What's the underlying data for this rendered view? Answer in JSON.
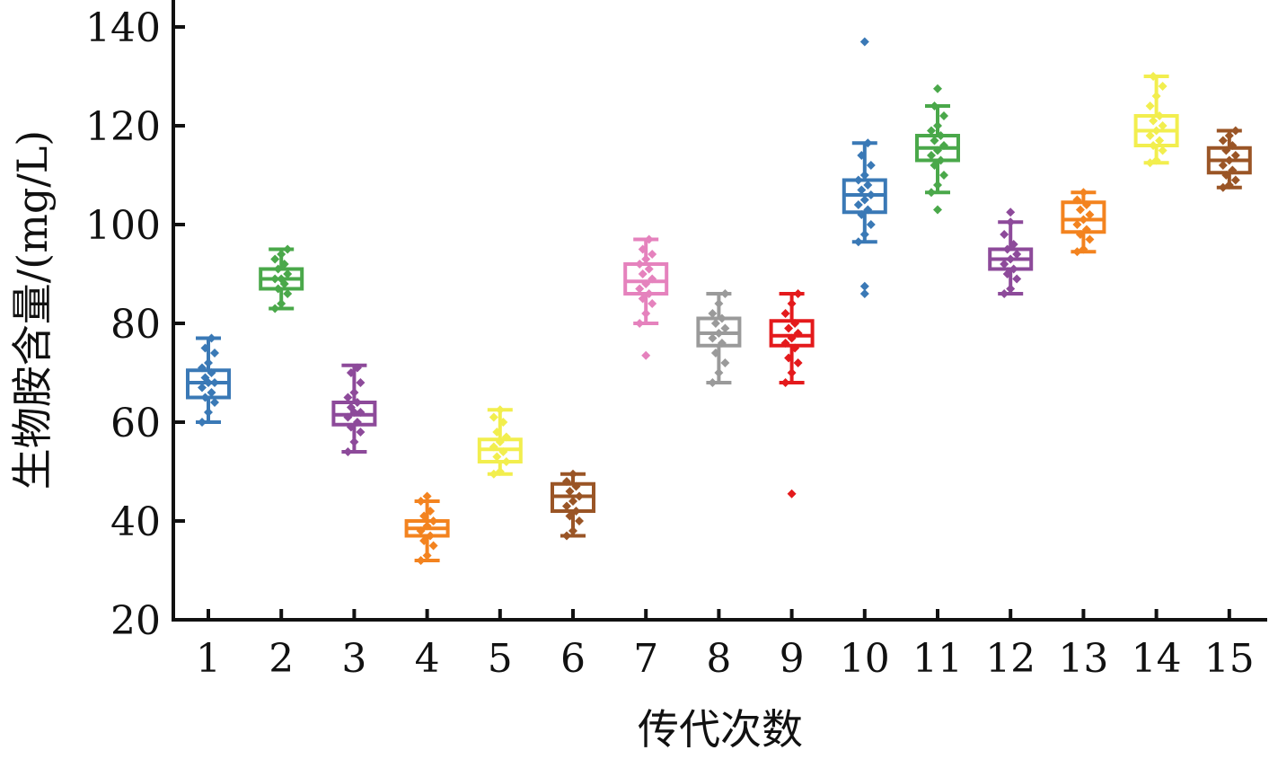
{
  "chart_data": {
    "type": "box",
    "xlabel": "传代次数",
    "ylabel": "生物胺含量/(mg/L)",
    "ylim": [
      20,
      140
    ],
    "yticks": [
      20,
      40,
      60,
      80,
      100,
      120,
      140
    ],
    "grid": false,
    "legend": "none",
    "categories": [
      "1",
      "2",
      "3",
      "4",
      "5",
      "6",
      "7",
      "8",
      "9",
      "10",
      "11",
      "12",
      "13",
      "14",
      "15"
    ],
    "boxes": [
      {
        "category": "1",
        "color": "#3a79b6",
        "whisker_low": 60,
        "q1": 65,
        "median": 68,
        "q3": 70.5,
        "whisker_high": 77,
        "outliers": [],
        "points": [
          60,
          62,
          64,
          65,
          66,
          67,
          68,
          68,
          69,
          70,
          71,
          72,
          74,
          75,
          77
        ]
      },
      {
        "category": "2",
        "color": "#4aa84a",
        "whisker_low": 83,
        "q1": 87,
        "median": 89,
        "q3": 91,
        "whisker_high": 95,
        "outliers": [],
        "points": [
          83,
          84,
          86,
          87,
          88,
          89,
          89,
          90,
          91,
          92,
          93,
          94,
          95
        ]
      },
      {
        "category": "3",
        "color": "#8d4a9a",
        "whisker_low": 54,
        "q1": 59.5,
        "median": 61.5,
        "q3": 64,
        "whisker_high": 71.5,
        "outliers": [],
        "points": [
          54,
          56,
          58,
          59,
          60,
          61,
          62,
          62,
          63,
          64,
          65,
          66,
          68,
          70,
          71
        ]
      },
      {
        "category": "4",
        "color": "#f3831f",
        "whisker_low": 32,
        "q1": 37,
        "median": 38.5,
        "q3": 40,
        "whisker_high": 44,
        "outliers": [],
        "points": [
          32,
          33,
          35,
          36,
          37,
          38,
          39,
          40,
          41,
          42,
          44,
          45
        ]
      },
      {
        "category": "5",
        "color": "#f2ee4e",
        "whisker_low": 49.5,
        "q1": 52,
        "median": 54.5,
        "q3": 56.5,
        "whisker_high": 62.5,
        "outliers": [],
        "points": [
          49.5,
          50,
          52,
          53,
          54,
          55,
          56,
          57,
          58,
          60,
          61,
          62.5
        ]
      },
      {
        "category": "6",
        "color": "#9a5526",
        "whisker_low": 37,
        "q1": 42,
        "median": 45,
        "q3": 47.5,
        "whisker_high": 49.5,
        "outliers": [],
        "points": [
          37,
          38,
          40,
          41,
          42,
          43,
          44,
          45,
          46,
          47,
          48,
          49.5
        ]
      },
      {
        "category": "7",
        "color": "#e582bd",
        "whisker_low": 80,
        "q1": 86,
        "median": 88.5,
        "q3": 92,
        "whisker_high": 97,
        "outliers": [
          73.5
        ],
        "points": [
          80,
          82,
          84,
          85,
          86,
          87,
          88,
          89,
          90,
          91,
          92,
          93,
          94,
          95,
          97
        ]
      },
      {
        "category": "8",
        "color": "#9a9a9a",
        "whisker_low": 68,
        "q1": 75.5,
        "median": 78,
        "q3": 81,
        "whisker_high": 86,
        "outliers": [],
        "points": [
          68,
          70,
          72,
          74,
          76,
          77,
          78,
          79,
          80,
          81,
          82,
          84,
          86
        ]
      },
      {
        "category": "9",
        "color": "#e41a1c",
        "whisker_low": 68,
        "q1": 75.5,
        "median": 77.5,
        "q3": 80.5,
        "whisker_high": 86,
        "outliers": [
          45.5
        ],
        "points": [
          68,
          70,
          72,
          73,
          75,
          76,
          77,
          78,
          79,
          80,
          82,
          84,
          86
        ]
      },
      {
        "category": "10",
        "color": "#3a79b6",
        "whisker_low": 96.5,
        "q1": 102.5,
        "median": 106,
        "q3": 109,
        "whisker_high": 116.5,
        "outliers": [
          87.5,
          86,
          137
        ],
        "points": [
          96.5,
          98,
          100,
          102,
          103,
          104,
          105,
          106,
          107,
          108,
          109,
          110,
          112,
          114,
          116.5
        ]
      },
      {
        "category": "11",
        "color": "#4aa84a",
        "whisker_low": 106.5,
        "q1": 113,
        "median": 115.5,
        "q3": 118,
        "whisker_high": 124,
        "outliers": [
          103,
          127.5
        ],
        "points": [
          106.5,
          108,
          110,
          112,
          113,
          114,
          115,
          116,
          117,
          118,
          119,
          120,
          122,
          124
        ]
      },
      {
        "category": "12",
        "color": "#8d4a9a",
        "whisker_low": 86,
        "q1": 91,
        "median": 93,
        "q3": 95,
        "whisker_high": 100.5,
        "outliers": [
          102.5
        ],
        "points": [
          86,
          87,
          89,
          90,
          91,
          92,
          93,
          94,
          95,
          96,
          98,
          100.5
        ]
      },
      {
        "category": "13",
        "color": "#f3831f",
        "whisker_low": 94.5,
        "q1": 98.5,
        "median": 101,
        "q3": 104.5,
        "whisker_high": 106.5,
        "outliers": [],
        "points": [
          94.5,
          95,
          97,
          98,
          99,
          100,
          101,
          102,
          103,
          104,
          105,
          106.5
        ]
      },
      {
        "category": "14",
        "color": "#f2ee4e",
        "whisker_low": 112.5,
        "q1": 116,
        "median": 119,
        "q3": 122,
        "whisker_high": 130,
        "outliers": [],
        "points": [
          112.5,
          113,
          115,
          116,
          117,
          118,
          119,
          120,
          121,
          122,
          124,
          126,
          128,
          130
        ]
      },
      {
        "category": "15",
        "color": "#9a5526",
        "whisker_low": 107.5,
        "q1": 110.5,
        "median": 113,
        "q3": 115.5,
        "whisker_high": 119,
        "outliers": [],
        "points": [
          107.5,
          108,
          109,
          110,
          111,
          112,
          113,
          114,
          115,
          116,
          117,
          118,
          119
        ]
      }
    ]
  }
}
